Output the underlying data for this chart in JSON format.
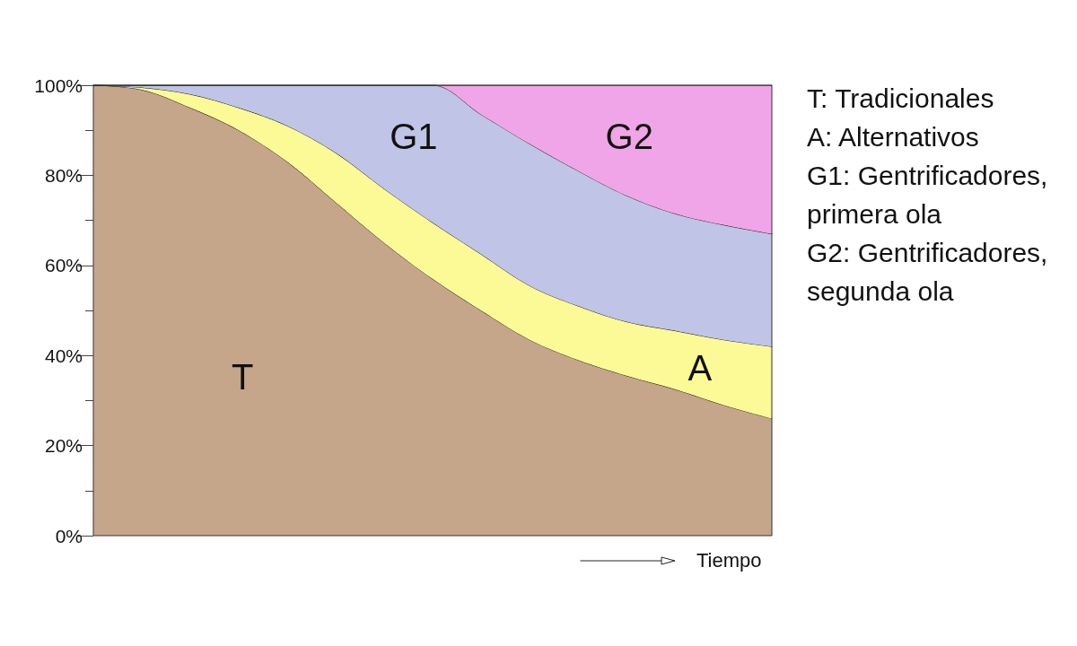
{
  "chart_data": {
    "type": "area",
    "stacked": true,
    "categories": [
      null,
      null,
      null,
      null,
      null,
      null,
      null,
      null,
      null,
      null,
      null,
      null,
      null,
      null,
      null
    ],
    "series": [
      {
        "name": "T",
        "color": "#c5a68a",
        "values": [
          100,
          99,
          95,
          90,
          83,
          74,
          65,
          57,
          50,
          43.5,
          39,
          35.5,
          32.5,
          29,
          26
        ]
      },
      {
        "name": "A",
        "color": "#fcfa96",
        "values": [
          0,
          0.5,
          3,
          5,
          8,
          11,
          12,
          12.5,
          12.5,
          12,
          12,
          12,
          13,
          14.5,
          16
        ]
      },
      {
        "name": "G1",
        "color": "#c0c4e6",
        "values": [
          0,
          0.5,
          2,
          5,
          9,
          15,
          23,
          30.5,
          31,
          31.5,
          30,
          28,
          26,
          25.5,
          25
        ]
      },
      {
        "name": "G2",
        "color": "#f0a5e8",
        "values": [
          0,
          0,
          0,
          0,
          0,
          0,
          0,
          0,
          6.5,
          13,
          19,
          24.5,
          28.5,
          31,
          33
        ]
      }
    ],
    "ylim": [
      0,
      100
    ],
    "yticks": [
      {
        "value": 0,
        "label": "0%"
      },
      {
        "value": 10,
        "label": null
      },
      {
        "value": 20,
        "label": "20%"
      },
      {
        "value": 30,
        "label": null
      },
      {
        "value": 40,
        "label": "40%"
      },
      {
        "value": 50,
        "label": null
      },
      {
        "value": 60,
        "label": "60%"
      },
      {
        "value": 70,
        "label": null
      },
      {
        "value": 80,
        "label": "80%"
      },
      {
        "value": 90,
        "label": null
      },
      {
        "value": 100,
        "label": "100%"
      }
    ],
    "tick_labels": "y",
    "xlabel": "Tiempo",
    "annotations": [
      "T: Tradicionales",
      "A: Alternativos",
      "G1: Gentrificadores, primera ola",
      "G2: Gentrificadores, segunda ola"
    ]
  }
}
